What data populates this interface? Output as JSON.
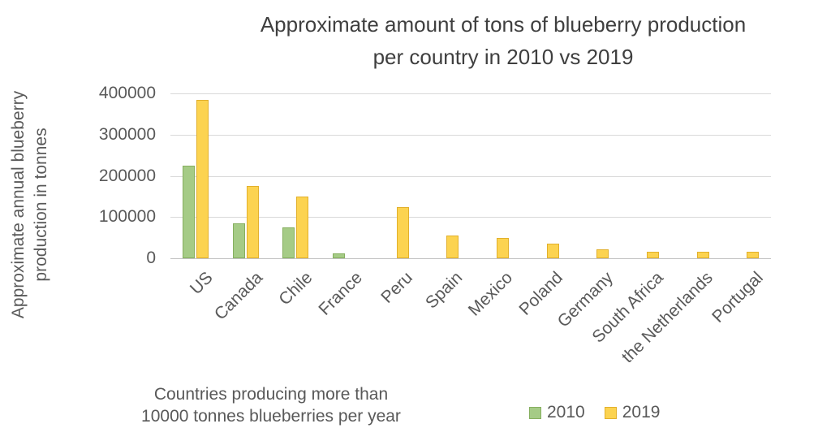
{
  "chart_data": {
    "type": "bar",
    "title": "Approximate amount of tons of blueberry production per country in 2010 vs 2019",
    "title_lines": [
      "Approximate amount of tons of blueberry production",
      "per country in 2010 vs 2019"
    ],
    "ylabel": "Approximate annual blueberry production in tonnes",
    "ylabel_lines": [
      "Approximate annual blueberry",
      "production in tonnes"
    ],
    "xlabel": "Countries producing more than 10000 tonnes blueberries per year",
    "xlabel_lines": [
      "Countries producing more than",
      "10000 tonnes blueberries  per year"
    ],
    "categories": [
      "US",
      "Canada",
      "Chile",
      "France",
      "Peru",
      "Spain",
      "Mexico",
      "Poland",
      "Germany",
      "South Africa",
      "the Netherlands",
      "Portugal"
    ],
    "series": [
      {
        "name": "2010",
        "color": "#a5cb86",
        "border_color": "#86af5f",
        "values": [
          225000,
          85000,
          75000,
          12000,
          0,
          0,
          0,
          0,
          0,
          0,
          0,
          0
        ]
      },
      {
        "name": "2019",
        "color": "#fcd350",
        "border_color": "#e2b02c",
        "values": [
          385000,
          175000,
          150000,
          0,
          125000,
          55000,
          50000,
          36000,
          22000,
          16000,
          16000,
          15000
        ]
      }
    ],
    "ylim": [
      0,
      400000
    ],
    "yticks": [
      0,
      100000,
      200000,
      300000,
      400000
    ],
    "grid": true,
    "legend_position": "bottom-right",
    "colors": {
      "grid_line": "#d9d9d9",
      "axis_line": "#c2c2c2",
      "axis_text": "#595959",
      "title_text": "#3f3f3f",
      "background": "#ffffff"
    }
  }
}
